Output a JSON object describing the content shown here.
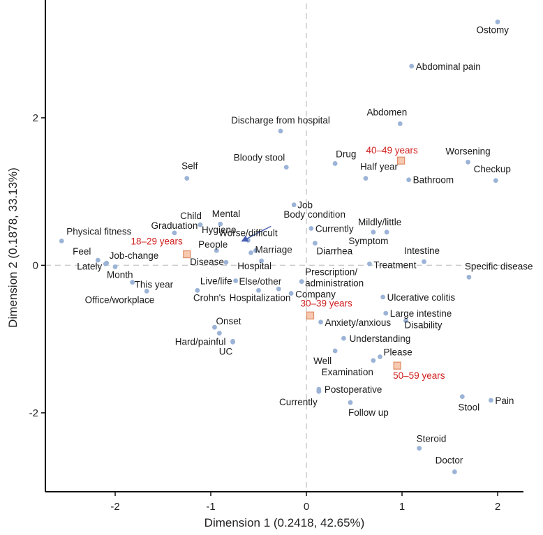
{
  "chart_data": {
    "type": "scatter",
    "xlabel": "Dimension 1 (0.2418, 42.65%)",
    "ylabel": "Dimension 2 (0.1878, 33.13%)",
    "xlim": [
      -2.73,
      2.27
    ],
    "ylim": [
      -3.07,
      3.55
    ],
    "xticks": [
      -2,
      -1,
      0,
      1,
      2
    ],
    "yticks": [
      -2,
      0,
      2
    ],
    "reference_lines": {
      "x": 0,
      "y": 0,
      "style": "dashed"
    },
    "grid": false,
    "colors": {
      "point": "#9bb3d6",
      "group_fill": "#f6c9b0",
      "group_edge": "#e0906a",
      "group_text": "#d0211f",
      "arrow": "#4a5fb5",
      "refline": "#cccccc"
    },
    "points": [
      {
        "label": "Ostomy",
        "x": 2.0,
        "y": 3.3,
        "anchor": "end",
        "dx": 16,
        "dy": 16
      },
      {
        "label": "Abdominal pain",
        "x": 1.1,
        "y": 2.7,
        "anchor": "start",
        "dx": 6,
        "dy": 5
      },
      {
        "label": "Abdomen",
        "x": 0.98,
        "y": 1.92,
        "anchor": "end",
        "dx": 10,
        "dy": -12
      },
      {
        "label": "Discharge from hospital",
        "x": -0.27,
        "y": 1.82,
        "anchor": "middle",
        "dx": 0,
        "dy": -11
      },
      {
        "label": "Worsening",
        "x": 1.69,
        "y": 1.4,
        "anchor": "middle",
        "dx": 0,
        "dy": -11
      },
      {
        "label": "Drug",
        "x": 0.3,
        "y": 1.38,
        "anchor": "start",
        "dx": 1,
        "dy": -9
      },
      {
        "label": "Bloody stool",
        "x": -0.21,
        "y": 1.33,
        "anchor": "end",
        "dx": -2,
        "dy": -9
      },
      {
        "label": "Half year",
        "x": 0.62,
        "y": 1.18,
        "anchor": "start",
        "dx": -8,
        "dy": -12
      },
      {
        "label": "Bathroom",
        "x": 1.07,
        "y": 1.16,
        "anchor": "start",
        "dx": 6,
        "dy": 5
      },
      {
        "label": "Checkup",
        "x": 1.98,
        "y": 1.15,
        "anchor": "middle",
        "dx": -5,
        "dy": -12
      },
      {
        "label": "Self",
        "x": -1.25,
        "y": 1.18,
        "anchor": "middle",
        "dx": 4,
        "dy": -13
      },
      {
        "label": "Job",
        "x": -0.13,
        "y": 0.82,
        "anchor": "start",
        "dx": 5,
        "dy": 5
      },
      {
        "label": "Body condition",
        "x": -0.53,
        "y": 0.2,
        "anchor": "start",
        "dx": 40,
        "dy": -47
      },
      {
        "label": "Child",
        "x": -1.11,
        "y": 0.55,
        "anchor": "end",
        "dx": 2,
        "dy": -8
      },
      {
        "label": "Mental",
        "x": -0.9,
        "y": 0.56,
        "anchor": "start",
        "dx": -12,
        "dy": -10
      },
      {
        "label": "Hygiene",
        "x": -1.11,
        "y": 0.55,
        "anchor": "start",
        "dx": 2,
        "dy": 12
      },
      {
        "label": "Physical fitness",
        "x": -2.56,
        "y": 0.33,
        "anchor": "start",
        "dx": 7,
        "dy": -9
      },
      {
        "label": "Graduation",
        "x": -1.38,
        "y": 0.44,
        "anchor": "middle",
        "dx": 0,
        "dy": -6
      },
      {
        "label": "Worse/difficult",
        "x": -0.61,
        "y": 0.34,
        "anchor": "middle",
        "dx": 0,
        "dy": -6
      },
      {
        "label": "Currently",
        "x": 0.05,
        "y": 0.5,
        "anchor": "start",
        "dx": 6,
        "dy": 5
      },
      {
        "label": "Mildly/little",
        "x": 0.84,
        "y": 0.45,
        "anchor": "middle",
        "dx": -10,
        "dy": -10
      },
      {
        "label": "Symptom",
        "x": 0.7,
        "y": 0.45,
        "anchor": "middle",
        "dx": -7,
        "dy": 17
      },
      {
        "label": "People",
        "x": -0.94,
        "y": 0.2,
        "anchor": "end",
        "dx": 16,
        "dy": -4
      },
      {
        "label": "Diarrhea",
        "x": 0.09,
        "y": 0.3,
        "anchor": "start",
        "dx": 2,
        "dy": 16
      },
      {
        "label": "Marriage",
        "x": -0.58,
        "y": 0.17,
        "anchor": "start",
        "dx": 6,
        "dy": 0
      },
      {
        "label": "Intestine",
        "x": 1.23,
        "y": 0.05,
        "anchor": "middle",
        "dx": -3,
        "dy": -11
      },
      {
        "label": "Feel",
        "x": -2.18,
        "y": 0.07,
        "anchor": "end",
        "dx": -10,
        "dy": -8
      },
      {
        "label": "Job-change",
        "x": -2.09,
        "y": 0.03,
        "anchor": "start",
        "dx": 4,
        "dy": -6
      },
      {
        "label": "Lately",
        "x": -2.1,
        "y": 0.02,
        "anchor": "end",
        "dx": -5,
        "dy": 8
      },
      {
        "label": "Month",
        "x": -2.0,
        "y": -0.02,
        "anchor": "start",
        "dx": -12,
        "dy": 16
      },
      {
        "label": "Disease",
        "x": -0.84,
        "y": 0.04,
        "anchor": "end",
        "dx": -3,
        "dy": 4
      },
      {
        "label": "Hospital",
        "x": -0.47,
        "y": 0.06,
        "anchor": "middle",
        "dx": -10,
        "dy": 12
      },
      {
        "label": "Treatment",
        "x": 0.66,
        "y": 0.02,
        "anchor": "start",
        "dx": 6,
        "dy": 6
      },
      {
        "label": "Specific disease",
        "x": 1.7,
        "y": -0.16,
        "anchor": "start",
        "dx": -6,
        "dy": -11
      },
      {
        "label": "This year",
        "x": -1.82,
        "y": -0.23,
        "anchor": "start",
        "dx": 3,
        "dy": 8
      },
      {
        "label": "Live/life",
        "x": -0.74,
        "y": -0.21,
        "anchor": "end",
        "dx": -5,
        "dy": 5
      },
      {
        "label": "Prescription/",
        "x": -0.05,
        "y": -0.22,
        "anchor": "start",
        "dx": 5,
        "dy": -9
      },
      {
        "label": "administration",
        "x": -0.05,
        "y": -0.22,
        "anchor": "start",
        "dx": 5,
        "dy": 7
      },
      {
        "label": "Office/workplace",
        "x": -1.67,
        "y": -0.35,
        "anchor": "end",
        "dx": 11,
        "dy": 17
      },
      {
        "label": "Crohn's",
        "x": -1.14,
        "y": -0.34,
        "anchor": "start",
        "dx": -6,
        "dy": 15
      },
      {
        "label": "Hospitalization",
        "x": -0.5,
        "y": -0.34,
        "anchor": "middle",
        "dx": 2,
        "dy": 15
      },
      {
        "label": "Else/other",
        "x": -0.29,
        "y": -0.32,
        "anchor": "end",
        "dx": 4,
        "dy": -6
      },
      {
        "label": "Company",
        "x": -0.16,
        "y": -0.38,
        "anchor": "start",
        "dx": 6,
        "dy": 6
      },
      {
        "label": "Ulcerative colitis",
        "x": 0.8,
        "y": -0.43,
        "anchor": "start",
        "dx": 6,
        "dy": 5
      },
      {
        "label": "Large intestine",
        "x": 0.83,
        "y": -0.65,
        "anchor": "start",
        "dx": 6,
        "dy": 5
      },
      {
        "label": "Disability",
        "x": 1.04,
        "y": -0.75,
        "anchor": "start",
        "dx": -2,
        "dy": 11
      },
      {
        "label": "Anxiety/anxious",
        "x": 0.15,
        "y": -0.77,
        "anchor": "start",
        "dx": 6,
        "dy": 5
      },
      {
        "label": "Onset",
        "x": -0.96,
        "y": -0.84,
        "anchor": "start",
        "dx": 2,
        "dy": -4
      },
      {
        "label": "",
        "x": -0.91,
        "y": -0.92
      },
      {
        "label": "Hard/painful",
        "x": -0.77,
        "y": -1.03,
        "anchor": "end",
        "dx": -10,
        "dy": 5
      },
      {
        "label": "UC",
        "x": -0.77,
        "y": -1.04,
        "anchor": "middle",
        "dx": -10,
        "dy": 18
      },
      {
        "label": "Understanding",
        "x": 0.39,
        "y": -0.99,
        "anchor": "start",
        "dx": 8,
        "dy": 5
      },
      {
        "label": "Well",
        "x": 0.3,
        "y": -1.16,
        "anchor": "end",
        "dx": -5,
        "dy": 19
      },
      {
        "label": "Please",
        "x": 0.77,
        "y": -1.24,
        "anchor": "start",
        "dx": 5,
        "dy": -2
      },
      {
        "label": "Examination",
        "x": 0.7,
        "y": -1.29,
        "anchor": "end",
        "dx": 0,
        "dy": 21
      },
      {
        "label": "Postoperative",
        "x": 0.13,
        "y": -1.68,
        "anchor": "start",
        "dx": 8,
        "dy": 5
      },
      {
        "label": "Currently",
        "x": 0.13,
        "y": -1.71,
        "anchor": "end",
        "dx": -2,
        "dy": 20
      },
      {
        "label": "Follow up",
        "x": 0.46,
        "y": -1.86,
        "anchor": "start",
        "dx": -3,
        "dy": 19
      },
      {
        "label": "Stool",
        "x": 1.63,
        "y": -1.78,
        "anchor": "start",
        "dx": -6,
        "dy": 20
      },
      {
        "label": "Pain",
        "x": 1.93,
        "y": -1.83,
        "anchor": "start",
        "dx": 6,
        "dy": 5
      },
      {
        "label": "Steroid",
        "x": 1.18,
        "y": -2.48,
        "anchor": "start",
        "dx": -4,
        "dy": -9
      },
      {
        "label": "Doctor",
        "x": 1.55,
        "y": -2.8,
        "anchor": "end",
        "dx": 12,
        "dy": -12
      }
    ],
    "groups": [
      {
        "label": "40–49 years",
        "x": 0.99,
        "y": 1.42,
        "anchor": "middle",
        "dx": -13,
        "dy": -10
      },
      {
        "label": "18–29 years",
        "x": -1.25,
        "y": 0.15,
        "anchor": "end",
        "dx": -6,
        "dy": -14
      },
      {
        "label": "30–39 years",
        "x": 0.04,
        "y": -0.68,
        "anchor": "start",
        "dx": -14,
        "dy": -13
      },
      {
        "label": "50–59 years",
        "x": 0.95,
        "y": -1.36,
        "anchor": "start",
        "dx": -6,
        "dy": 19
      }
    ],
    "arrow": {
      "from": [
        -0.37,
        0.53
      ],
      "to": [
        -0.67,
        0.33
      ]
    }
  }
}
